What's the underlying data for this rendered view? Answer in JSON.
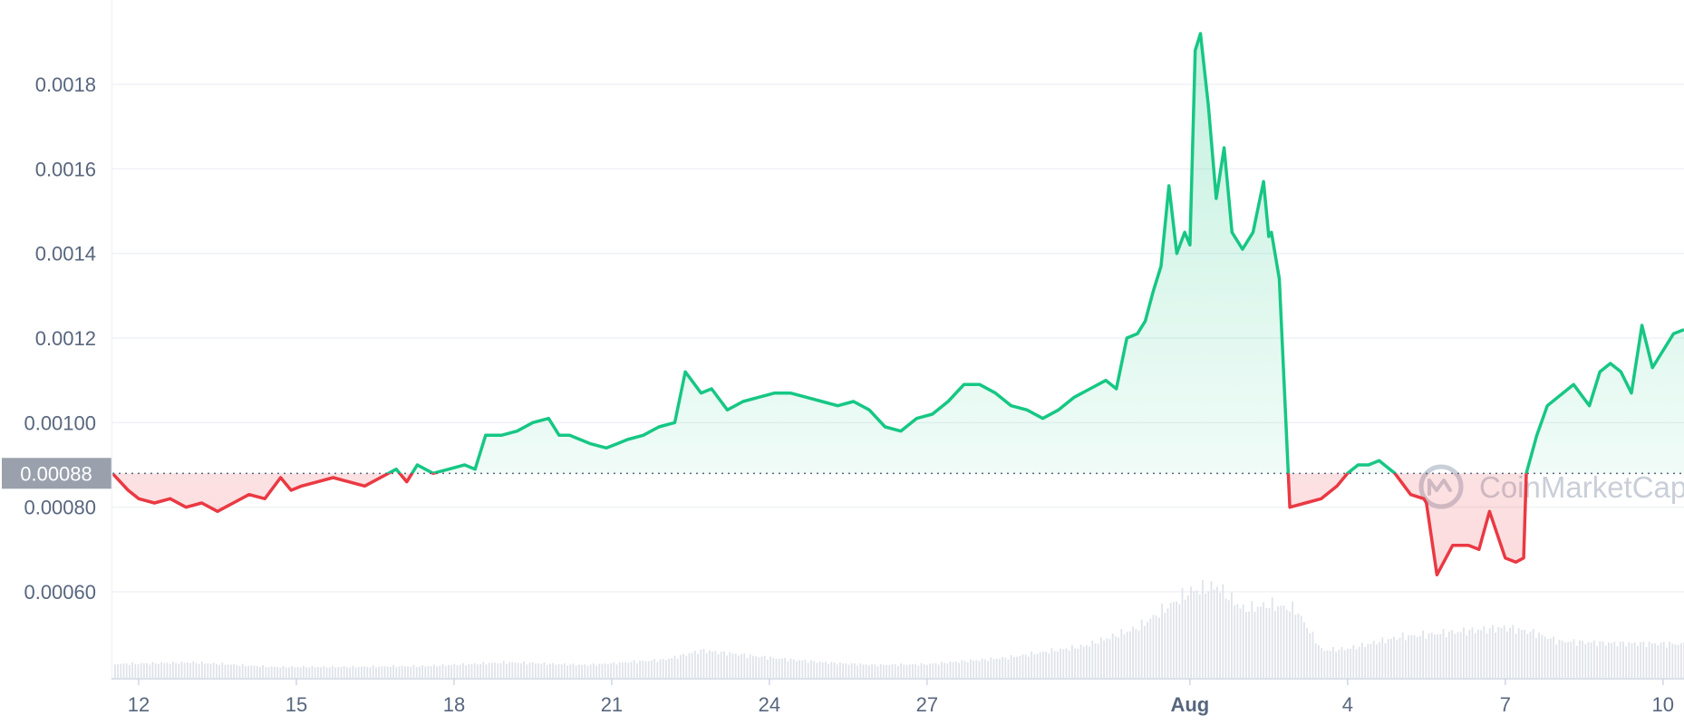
{
  "chart_data": {
    "type": "line",
    "title": "",
    "xlabel": "",
    "ylabel": "",
    "ylim": [
      0.0004,
      0.00195
    ],
    "y_ticks": [
      "0.00060",
      "0.00080",
      "0.00100",
      "0.0012",
      "0.0014",
      "0.0016",
      "0.0018"
    ],
    "y_tick_values": [
      0.0006,
      0.0008,
      0.001,
      0.0012,
      0.0014,
      0.0016,
      0.0018
    ],
    "x_ticks": [
      "12",
      "15",
      "18",
      "21",
      "24",
      "27",
      "Aug",
      "4",
      "7",
      "10"
    ],
    "x_tick_days": [
      12,
      15,
      18,
      21,
      24,
      27,
      32,
      35,
      38,
      41
    ],
    "x_range_days": [
      11.5,
      41.4
    ],
    "baseline": {
      "value": 0.00088,
      "label": "0.00088"
    },
    "grid": true,
    "colors": {
      "up": "#16c784",
      "down": "#ea3943",
      "grid": "#eff2f5",
      "label_bg": "#9aa1ad"
    },
    "watermark": "CoinMarketCap",
    "series": [
      {
        "x": [
          11.5,
          11.8,
          12.0,
          12.3,
          12.6,
          12.9,
          13.2,
          13.5,
          13.8,
          14.1,
          14.4,
          14.7,
          14.9,
          15.1,
          15.4,
          15.7,
          16.0,
          16.3,
          16.6,
          16.9,
          17.1,
          17.3,
          17.6,
          17.9,
          18.2,
          18.4,
          18.6,
          18.9,
          19.2,
          19.5,
          19.8,
          20.0,
          20.2,
          20.4,
          20.6,
          20.9,
          21.1,
          21.3,
          21.6,
          21.9,
          22.2,
          22.4,
          22.7,
          22.9,
          23.2,
          23.5,
          23.8,
          24.1,
          24.4,
          24.7,
          25.0,
          25.3,
          25.6,
          25.9,
          26.2,
          26.5,
          26.8,
          27.1,
          27.4,
          27.7,
          28.0,
          28.3,
          28.6,
          28.9,
          29.2,
          29.5,
          29.8,
          30.1,
          30.4,
          30.6,
          30.8,
          31.0,
          31.15,
          31.3,
          31.45,
          31.6,
          31.75,
          31.9,
          32.0,
          32.1,
          32.2,
          32.35,
          32.5,
          32.65,
          32.8,
          33.0,
          33.2,
          33.4,
          33.5,
          33.55,
          33.7,
          33.9,
          34.2,
          34.5,
          34.8,
          35.0,
          35.2,
          35.4,
          35.6,
          35.9,
          36.2,
          36.45,
          36.5,
          36.7,
          37.0,
          37.3,
          37.5,
          37.7,
          38.0,
          38.2,
          38.35,
          38.4,
          38.6,
          38.8,
          39.0,
          39.3,
          39.6,
          39.8,
          40.0,
          40.2,
          40.4,
          40.6,
          40.8,
          41.0,
          41.2,
          41.4
        ],
        "values": [
          0.00088,
          0.00084,
          0.00082,
          0.00081,
          0.00082,
          0.0008,
          0.00081,
          0.00079,
          0.00081,
          0.00083,
          0.00082,
          0.00087,
          0.00084,
          0.00085,
          0.00086,
          0.00087,
          0.00086,
          0.00085,
          0.00087,
          0.00089,
          0.00086,
          0.0009,
          0.00088,
          0.00089,
          0.0009,
          0.00089,
          0.00097,
          0.00097,
          0.00098,
          0.001,
          0.00101,
          0.00097,
          0.00097,
          0.00096,
          0.00095,
          0.00094,
          0.00095,
          0.00096,
          0.00097,
          0.00099,
          0.001,
          0.00112,
          0.00107,
          0.00108,
          0.00103,
          0.00105,
          0.00106,
          0.00107,
          0.00107,
          0.00106,
          0.00105,
          0.00104,
          0.00105,
          0.00103,
          0.00099,
          0.00098,
          0.00101,
          0.00102,
          0.00105,
          0.00109,
          0.00109,
          0.00107,
          0.00104,
          0.00103,
          0.00101,
          0.00103,
          0.00106,
          0.00108,
          0.0011,
          0.00108,
          0.0012,
          0.00121,
          0.00124,
          0.00131,
          0.00137,
          0.00156,
          0.0014,
          0.00145,
          0.00142,
          0.00188,
          0.00192,
          0.00175,
          0.00153,
          0.00165,
          0.00145,
          0.00141,
          0.00145,
          0.00157,
          0.00144,
          0.00145,
          0.00134,
          0.0008,
          0.00081,
          0.00082,
          0.00085,
          0.00088,
          0.0009,
          0.0009,
          0.00091,
          0.00088,
          0.00083,
          0.00082,
          0.00081,
          0.00064,
          0.00071,
          0.00071,
          0.0007,
          0.00079,
          0.00068,
          0.00067,
          0.00068,
          0.00088,
          0.00097,
          0.00104,
          0.00106,
          0.00109,
          0.00104,
          0.00112,
          0.00114,
          0.00112,
          0.00107,
          0.00123,
          0.00113,
          0.00117,
          0.00121,
          0.00122
        ]
      }
    ],
    "volume": {
      "x": [
        11.5,
        13.0,
        14.5,
        16.0,
        17.5,
        19.0,
        20.5,
        22.0,
        22.7,
        24.0,
        25.0,
        26.0,
        27.0,
        28.5,
        30.0,
        31.0,
        31.5,
        32.0,
        32.5,
        33.0,
        33.5,
        34.0,
        34.5,
        35.0,
        36.0,
        37.0,
        38.0,
        38.5,
        39.0,
        40.0,
        41.4
      ],
      "values": [
        0.15,
        0.17,
        0.12,
        0.12,
        0.13,
        0.17,
        0.14,
        0.2,
        0.3,
        0.22,
        0.17,
        0.14,
        0.15,
        0.22,
        0.35,
        0.55,
        0.75,
        0.95,
        1.0,
        0.75,
        0.8,
        0.75,
        0.3,
        0.32,
        0.45,
        0.5,
        0.55,
        0.5,
        0.4,
        0.38,
        0.37
      ]
    }
  }
}
